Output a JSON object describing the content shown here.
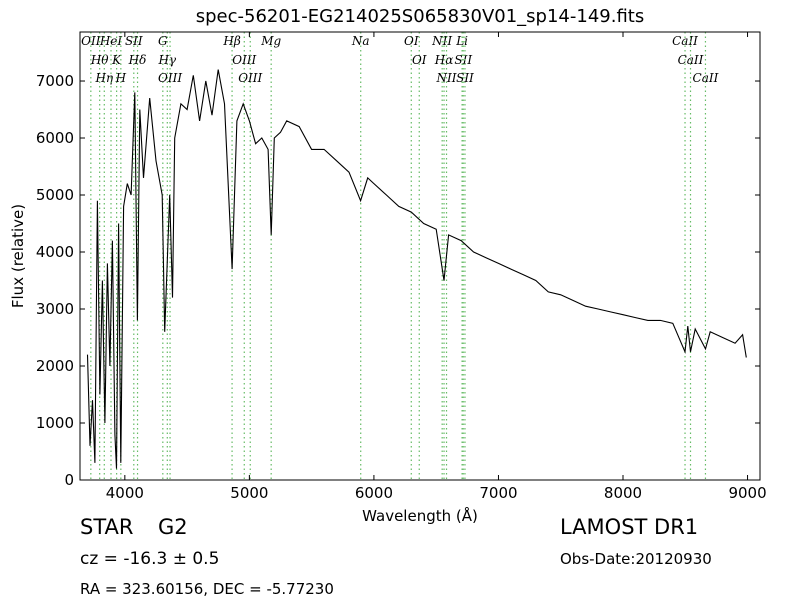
{
  "chart_data": {
    "type": "line",
    "title": "spec-56201-EG214025S065830V01_sp14-149.fits",
    "x_label": "Wavelength (Å)",
    "y_label": "Flux (relative)",
    "xlim": [
      3640,
      9100
    ],
    "ylim": [
      0,
      7860
    ],
    "xticks": [
      4000,
      5000,
      6000,
      7000,
      8000,
      9000
    ],
    "yticks": [
      0,
      1000,
      2000,
      3000,
      4000,
      5000,
      6000,
      7000
    ],
    "color": "#000000",
    "x": [
      3700,
      3720,
      3740,
      3760,
      3780,
      3800,
      3820,
      3840,
      3860,
      3880,
      3900,
      3920,
      3933,
      3950,
      3968,
      3990,
      4020,
      4050,
      4080,
      4101,
      4120,
      4150,
      4200,
      4250,
      4300,
      4320,
      4340,
      4360,
      4383,
      4400,
      4450,
      4500,
      4550,
      4600,
      4650,
      4700,
      4750,
      4800,
      4861,
      4900,
      4950,
      5000,
      5050,
      5100,
      5150,
      5175,
      5200,
      5250,
      5300,
      5400,
      5500,
      5600,
      5700,
      5800,
      5893,
      5950,
      6000,
      6100,
      6200,
      6300,
      6400,
      6500,
      6563,
      6600,
      6700,
      6800,
      6900,
      7000,
      7100,
      7200,
      7300,
      7400,
      7500,
      7600,
      7700,
      7800,
      7900,
      8000,
      8100,
      8200,
      8300,
      8400,
      8498,
      8520,
      8542,
      8580,
      8662,
      8700,
      8800,
      8900,
      8960,
      8990
    ],
    "values": [
      2200,
      600,
      1400,
      300,
      4900,
      1500,
      3500,
      1000,
      3800,
      2000,
      4200,
      800,
      200,
      4500,
      300,
      4800,
      5200,
      5000,
      6800,
      2800,
      6500,
      5300,
      6700,
      5600,
      5000,
      2600,
      3800,
      5000,
      3200,
      6000,
      6600,
      6500,
      7100,
      6300,
      7000,
      6400,
      7200,
      6600,
      3700,
      6300,
      6600,
      6300,
      5900,
      6000,
      5800,
      4300,
      6000,
      6100,
      6300,
      6200,
      5800,
      5800,
      5600,
      5400,
      4900,
      5300,
      5200,
      5000,
      4800,
      4700,
      4500,
      4400,
      3500,
      4300,
      4200,
      4000,
      3900,
      3800,
      3700,
      3600,
      3500,
      3300,
      3250,
      3150,
      3050,
      3000,
      2950,
      2900,
      2850,
      2800,
      2800,
      2750,
      2250,
      2700,
      2250,
      2650,
      2300,
      2600,
      2500,
      2400,
      2550,
      2150
    ],
    "line_color": "#66bb66",
    "lines": [
      {
        "name": "OII",
        "x": 3727
      },
      {
        "name": "Hθ",
        "x": 3798
      },
      {
        "name": "Hη",
        "x": 3835
      },
      {
        "name": "HeI",
        "x": 3889
      },
      {
        "name": "K",
        "x": 3934
      },
      {
        "name": "H",
        "x": 3968
      },
      {
        "name": "SII",
        "x": 4072
      },
      {
        "name": "Hδ",
        "x": 4102
      },
      {
        "name": "G",
        "x": 4305
      },
      {
        "name": "Hγ",
        "x": 4341
      },
      {
        "name": "OIII",
        "x": 4363
      },
      {
        "name": "Hβ",
        "x": 4861
      },
      {
        "name": "OIII",
        "x": 4959
      },
      {
        "name": "OIII",
        "x": 5007
      },
      {
        "name": "Mg",
        "x": 5175
      },
      {
        "name": "Na",
        "x": 5894
      },
      {
        "name": "OI",
        "x": 6300
      },
      {
        "name": "OI",
        "x": 6364
      },
      {
        "name": "NII",
        "x": 6548
      },
      {
        "name": "Hα",
        "x": 6563
      },
      {
        "name": "NII",
        "x": 6583
      },
      {
        "name": "Li",
        "x": 6708
      },
      {
        "name": "SII",
        "x": 6717
      },
      {
        "name": "SII",
        "x": 6731
      },
      {
        "name": "CaII",
        "x": 8498
      },
      {
        "name": "CaII",
        "x": 8542
      },
      {
        "name": "CaII",
        "x": 8662
      }
    ],
    "object_class": "STAR",
    "subclass": "G2",
    "redshift": "cz = -16.3 ± 0.5",
    "coords": "RA = 323.60156, DEC = -5.77230",
    "survey": "LAMOST DR1",
    "obs_date": "Obs-Date:20120930"
  }
}
